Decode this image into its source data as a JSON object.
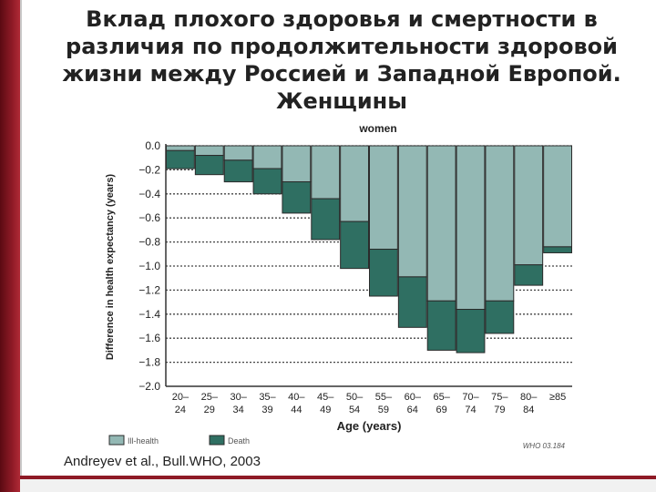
{
  "slide": {
    "title": "Вклад плохого здоровья и смертности в различия по продолжительности здоровой жизни между Россией и Западной Европой. Женщины",
    "citation": "Andreyev et al., Bull.WHO, 2003"
  },
  "chart_data": {
    "type": "bar",
    "stacked": true,
    "title": "women",
    "xlabel": "Age (years)",
    "ylabel": "Difference in health expectancy (years)",
    "ylim": [
      -2.0,
      0.0
    ],
    "yticks": [
      "0.0",
      "−0.2",
      "−0.4",
      "−0.6",
      "−0.8",
      "−1.0",
      "−1.2",
      "−1.4",
      "−1.6",
      "−1.8",
      "−2.0"
    ],
    "ytick_values": [
      0.0,
      -0.2,
      -0.4,
      -0.6,
      -0.8,
      -1.0,
      -1.2,
      -1.4,
      -1.6,
      -1.8,
      -2.0
    ],
    "categories": [
      [
        "20–",
        "24"
      ],
      [
        "25–",
        "29"
      ],
      [
        "30–",
        "34"
      ],
      [
        "35–",
        "39"
      ],
      [
        "40–",
        "44"
      ],
      [
        "45–",
        "49"
      ],
      [
        "50–",
        "54"
      ],
      [
        "55–",
        "59"
      ],
      [
        "60–",
        "64"
      ],
      [
        "65–",
        "69"
      ],
      [
        "70–",
        "74"
      ],
      [
        "75–",
        "79"
      ],
      [
        "80–",
        "84"
      ],
      [
        "≥85",
        ""
      ]
    ],
    "series": [
      {
        "name": "Ill-health",
        "color": "#93b8b4",
        "values": [
          -0.04,
          -0.08,
          -0.12,
          -0.19,
          -0.3,
          -0.44,
          -0.63,
          -0.86,
          -1.09,
          -1.29,
          -1.36,
          -1.29,
          -0.99,
          -0.84
        ]
      },
      {
        "name": "Death",
        "color": "#2f6f62",
        "values": [
          -0.15,
          -0.16,
          -0.18,
          -0.21,
          -0.26,
          -0.34,
          -0.39,
          -0.39,
          -0.42,
          -0.41,
          -0.36,
          -0.27,
          -0.17,
          -0.05
        ]
      }
    ],
    "grid": true,
    "legend": "bottom-left",
    "source_note": "WHO 03.184"
  }
}
